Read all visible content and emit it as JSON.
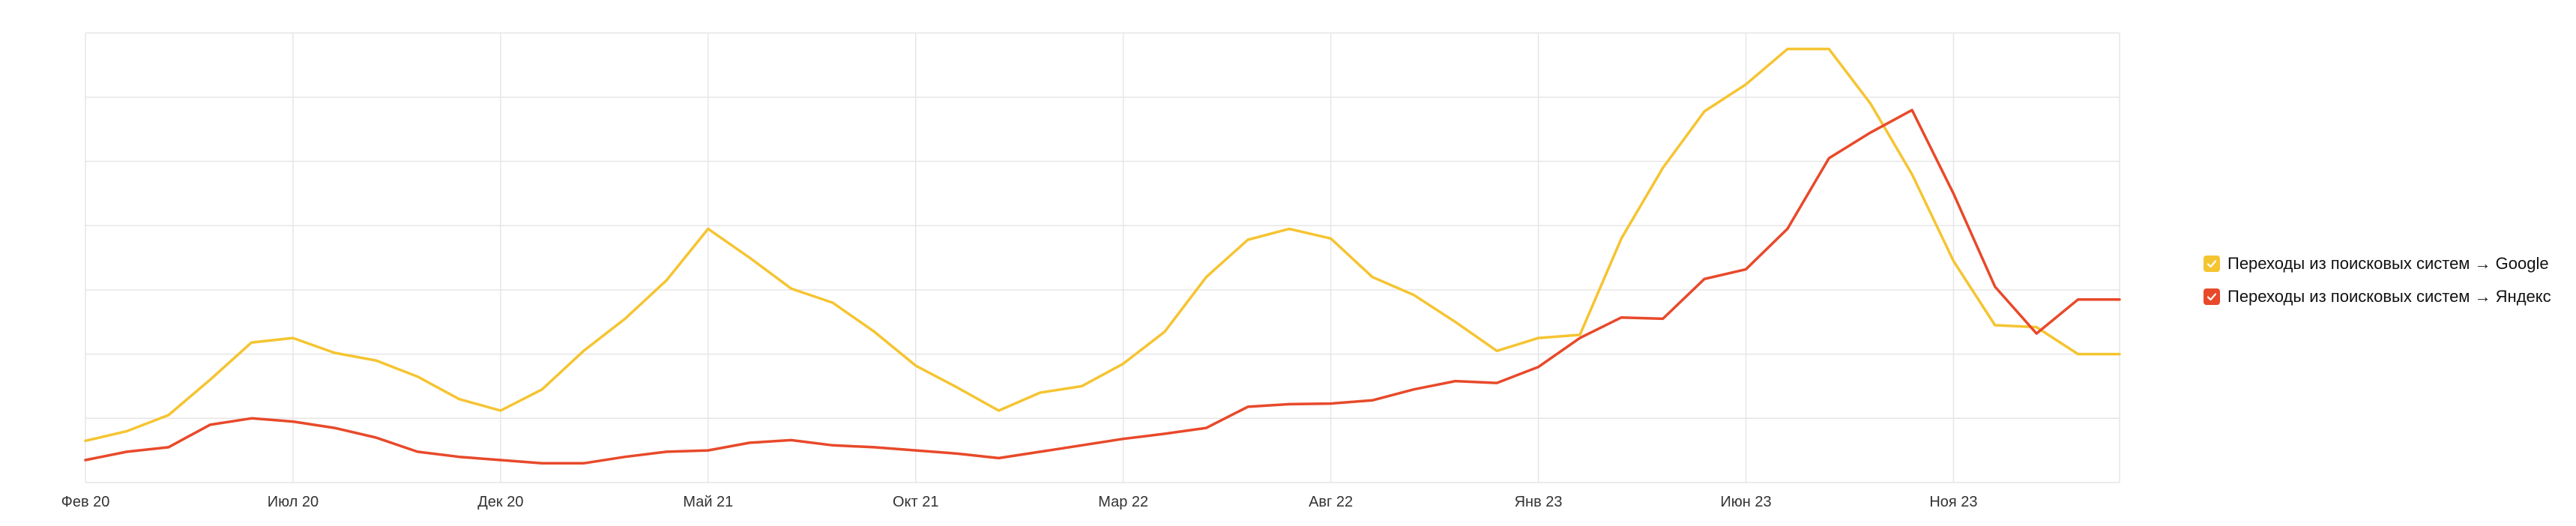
{
  "chart_data": {
    "type": "line",
    "x": [
      "Фев 20",
      "Мар 20",
      "Апр 20",
      "Май 20",
      "Июн 20",
      "Июл 20",
      "Авг 20",
      "Сен 20",
      "Окт 20",
      "Ноя 20",
      "Дек 20",
      "Янв 21",
      "Фев 21",
      "Мар 21",
      "Апр 21",
      "Май 21",
      "Июн 21",
      "Июл 21",
      "Авг 21",
      "Сен 21",
      "Окт 21",
      "Ноя 21",
      "Дек 21",
      "Янв 22",
      "Фев 22",
      "Мар 22",
      "Апр 22",
      "Май 22",
      "Июн 22",
      "Июл 22",
      "Авг 22",
      "Сен 22",
      "Окт 22",
      "Ноя 22",
      "Дек 22",
      "Янв 23",
      "Фев 23",
      "Мар 23",
      "Апр 23",
      "Май 23",
      "Июн 23",
      "Июл 23",
      "Авг 23",
      "Сен 23",
      "Окт 23",
      "Ноя 23",
      "Дек 23",
      "Янв 24",
      "Фев 24",
      "Мар 24"
    ],
    "x_tick_labels": [
      "Фев 20",
      "Июл 20",
      "Дек 20",
      "Май 21",
      "Окт 21",
      "Мар 22",
      "Авг 22",
      "Янв 23",
      "Июн 23",
      "Ноя 23"
    ],
    "ylim": [
      0,
      7
    ],
    "y_tick_labels_visible": false,
    "grid": true,
    "legend_position": "right",
    "series": [
      {
        "name": "Переходы из поисковых систем → Google",
        "color": "#F5C431",
        "values": [
          0.65,
          0.8,
          1.05,
          1.6,
          2.18,
          2.25,
          2.02,
          1.9,
          1.65,
          1.3,
          1.12,
          1.45,
          2.05,
          2.55,
          3.15,
          3.95,
          3.5,
          3.02,
          2.8,
          2.35,
          1.82,
          1.48,
          1.12,
          1.4,
          1.5,
          1.85,
          2.35,
          3.2,
          3.78,
          3.95,
          3.8,
          3.2,
          2.92,
          2.5,
          2.05,
          2.25,
          2.3,
          3.8,
          4.9,
          5.78,
          6.2,
          6.75,
          6.75,
          5.9,
          4.8,
          3.45,
          2.45,
          2.42,
          2.0,
          2.0
        ]
      },
      {
        "name": "Переходы из поисковых систем → Яндекс",
        "color": "#E8492A",
        "values": [
          0.35,
          0.48,
          0.55,
          0.9,
          1.0,
          0.95,
          0.85,
          0.7,
          0.48,
          0.4,
          0.35,
          0.3,
          0.3,
          0.4,
          0.48,
          0.5,
          0.62,
          0.66,
          0.58,
          0.55,
          0.5,
          0.45,
          0.38,
          0.48,
          0.58,
          0.68,
          0.76,
          0.85,
          1.18,
          1.22,
          1.23,
          1.28,
          1.45,
          1.58,
          1.55,
          1.8,
          2.25,
          2.57,
          2.55,
          3.17,
          3.32,
          3.95,
          5.05,
          5.45,
          5.8,
          4.5,
          3.05,
          2.32,
          2.85,
          2.85
        ]
      }
    ]
  }
}
